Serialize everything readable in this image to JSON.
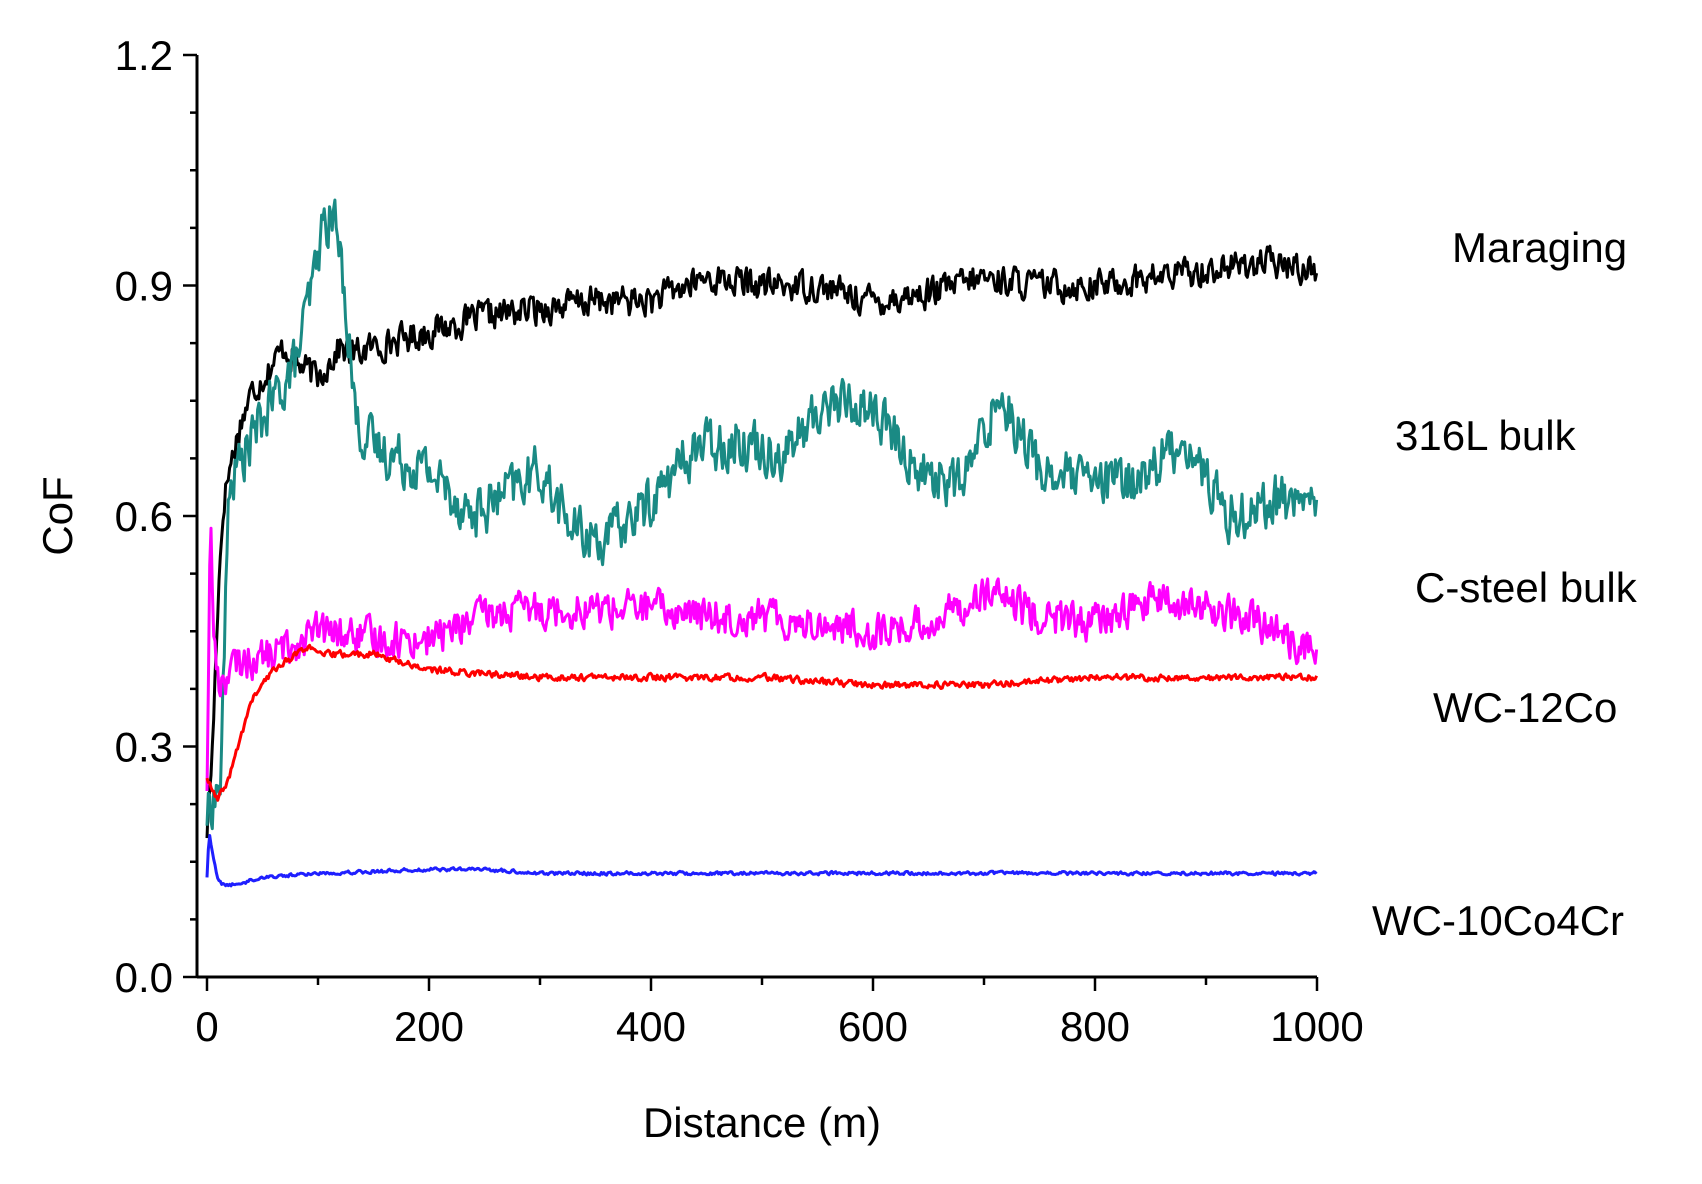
{
  "chart_data": {
    "type": "line",
    "title": "",
    "xlabel": "Distance (m)",
    "ylabel": "CoF",
    "xlim": [
      0,
      1000
    ],
    "ylim": [
      0,
      1.2
    ],
    "x_ticks": [
      0,
      200,
      400,
      600,
      800,
      1000
    ],
    "x_tick_labels": [
      "0",
      "200",
      "400",
      "600",
      "800",
      "1000"
    ],
    "y_ticks": [
      0,
      0.3,
      0.6,
      0.9,
      1.2
    ],
    "y_tick_labels": [
      "0.0",
      "0.3",
      "0.6",
      "0.9",
      "1.2"
    ],
    "grid": false,
    "series": [
      {
        "name": "Maraging",
        "label": "Maraging",
        "color": "#000000",
        "noise": 0.018,
        "x": [
          0,
          5,
          10,
          15,
          20,
          30,
          40,
          50,
          60,
          70,
          80,
          90,
          100,
          110,
          120,
          130,
          150,
          200,
          250,
          300,
          350,
          400,
          450,
          500,
          550,
          600,
          650,
          700,
          750,
          800,
          850,
          900,
          950,
          1000
        ],
        "y": [
          0.19,
          0.3,
          0.5,
          0.62,
          0.66,
          0.72,
          0.76,
          0.78,
          0.8,
          0.82,
          0.8,
          0.79,
          0.78,
          0.8,
          0.82,
          0.81,
          0.82,
          0.84,
          0.86,
          0.87,
          0.88,
          0.88,
          0.91,
          0.9,
          0.9,
          0.88,
          0.89,
          0.91,
          0.9,
          0.9,
          0.91,
          0.92,
          0.93,
          0.92
        ]
      },
      {
        "name": "316L bulk",
        "label": "316L bulk",
        "color": "#1a8a84",
        "noise": 0.03,
        "x": [
          0,
          5,
          12,
          20,
          40,
          60,
          80,
          95,
          105,
          115,
          125,
          135,
          150,
          200,
          240,
          280,
          300,
          330,
          360,
          400,
          440,
          480,
          520,
          560,
          600,
          640,
          680,
          715,
          750,
          800,
          840,
          880,
          920,
          960,
          1000
        ],
        "y": [
          0.21,
          0.23,
          0.25,
          0.64,
          0.7,
          0.75,
          0.8,
          0.9,
          0.98,
          0.99,
          0.88,
          0.72,
          0.69,
          0.66,
          0.6,
          0.64,
          0.66,
          0.58,
          0.57,
          0.62,
          0.69,
          0.7,
          0.68,
          0.75,
          0.74,
          0.66,
          0.64,
          0.76,
          0.66,
          0.64,
          0.65,
          0.7,
          0.6,
          0.62,
          0.62
        ]
      },
      {
        "name": "C-steel bulk",
        "label": "C-steel bulk",
        "color": "#ff00ff",
        "noise": 0.022,
        "x": [
          0,
          3,
          6,
          10,
          15,
          30,
          60,
          100,
          150,
          200,
          250,
          300,
          350,
          400,
          450,
          500,
          550,
          600,
          650,
          700,
          750,
          800,
          850,
          900,
          950,
          1000
        ],
        "y": [
          0.25,
          0.6,
          0.45,
          0.38,
          0.39,
          0.41,
          0.42,
          0.45,
          0.44,
          0.44,
          0.47,
          0.48,
          0.48,
          0.48,
          0.47,
          0.47,
          0.46,
          0.45,
          0.46,
          0.5,
          0.47,
          0.46,
          0.49,
          0.48,
          0.46,
          0.42
        ]
      },
      {
        "name": "WC-12Co",
        "label": "WC-12Co",
        "color": "#ff0000",
        "noise": 0.004,
        "x": [
          0,
          5,
          10,
          20,
          40,
          60,
          80,
          90,
          100,
          150,
          200,
          300,
          400,
          500,
          600,
          700,
          800,
          900,
          1000
        ],
        "y": [
          0.26,
          0.24,
          0.23,
          0.26,
          0.36,
          0.4,
          0.42,
          0.43,
          0.42,
          0.42,
          0.4,
          0.39,
          0.39,
          0.39,
          0.38,
          0.38,
          0.39,
          0.39,
          0.39
        ]
      },
      {
        "name": "WC-10Co4Cr",
        "label": "WC-10Co4Cr",
        "color": "#1f1fff",
        "noise": 0.002,
        "x": [
          0,
          2,
          5,
          10,
          15,
          25,
          50,
          100,
          200,
          250,
          300,
          400,
          500,
          600,
          700,
          800,
          900,
          1000
        ],
        "y": [
          0.13,
          0.19,
          0.16,
          0.125,
          0.12,
          0.12,
          0.13,
          0.135,
          0.14,
          0.14,
          0.135,
          0.135,
          0.135,
          0.135,
          0.135,
          0.135,
          0.135,
          0.135
        ]
      }
    ]
  }
}
